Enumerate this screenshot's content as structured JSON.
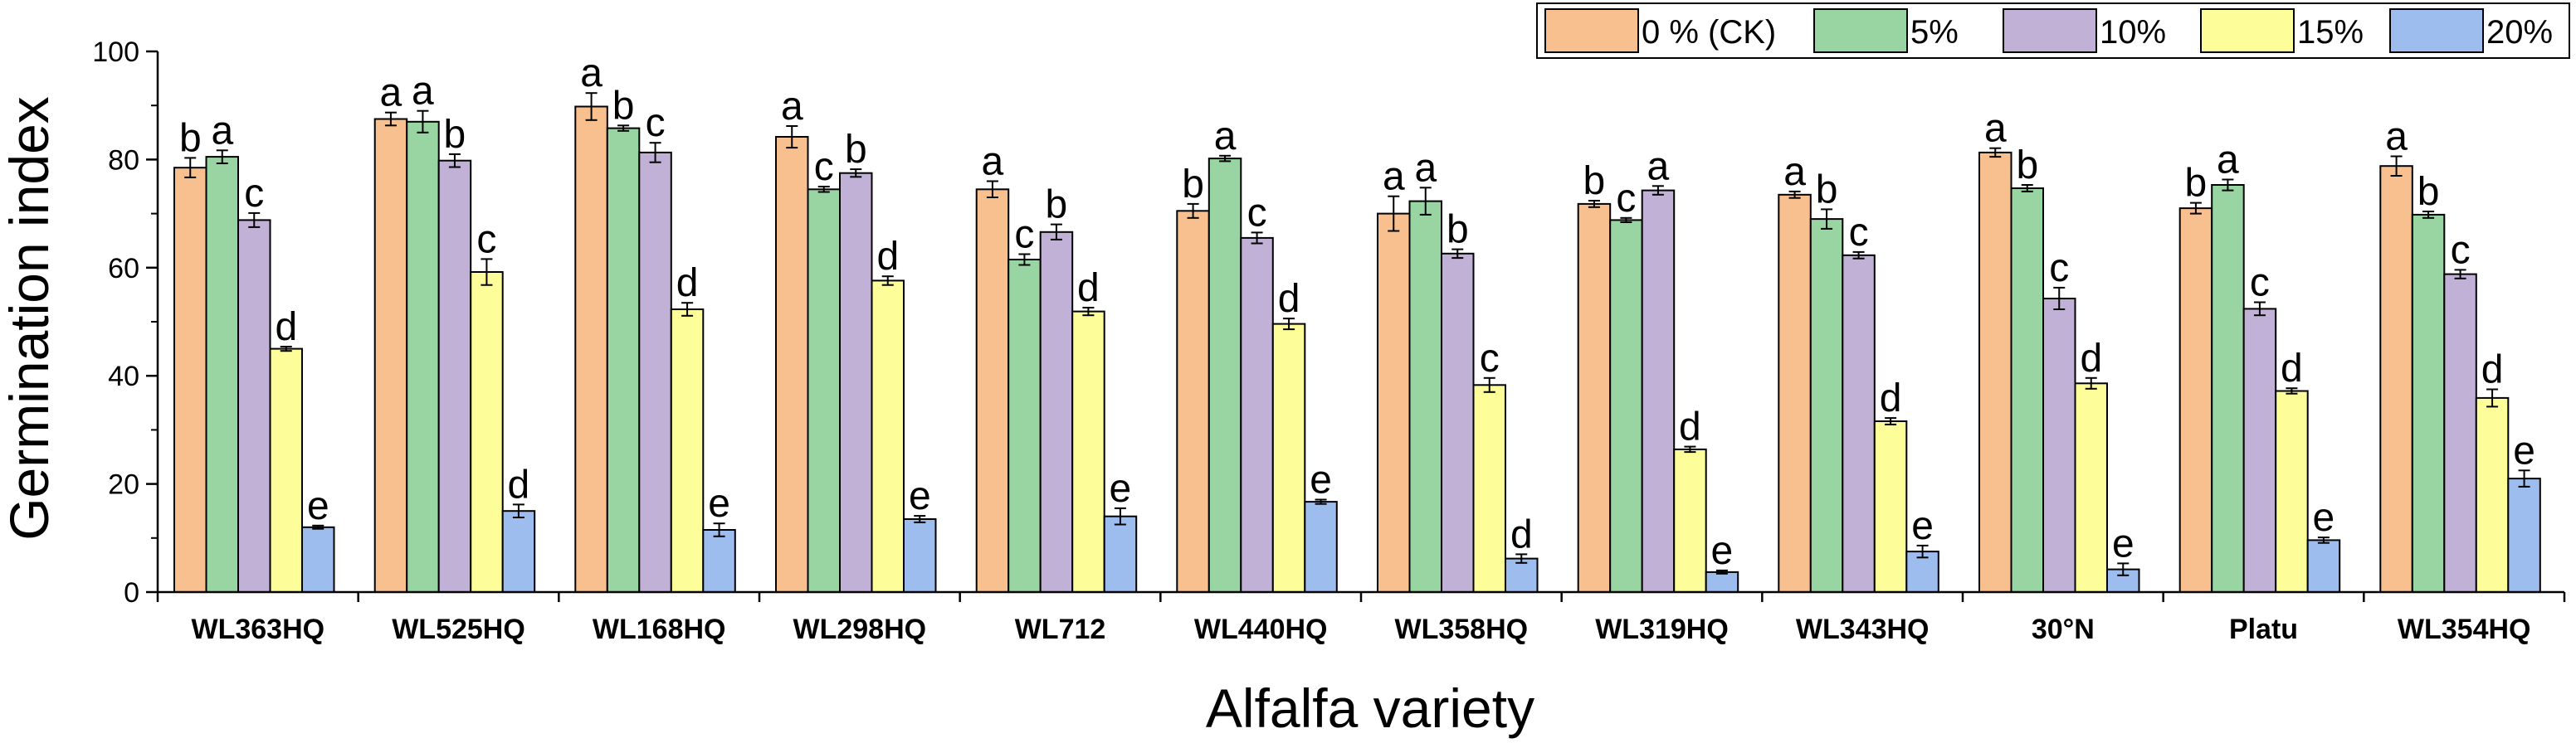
{
  "chart_data": {
    "type": "bar",
    "title": "",
    "xlabel": "Alfalfa variety",
    "ylabel": "Germination index",
    "ylim": [
      0,
      100
    ],
    "yticks": [
      "0",
      "20",
      "40",
      "60",
      "80",
      "100"
    ],
    "legend_position": "top-right",
    "categories": [
      "WL363HQ",
      "WL525HQ",
      "WL168HQ",
      "WL298HQ",
      "WL712",
      "WL440HQ",
      "WL358HQ",
      "WL319HQ",
      "WL343HQ",
      "30°N",
      "Platu",
      "WL354HQ"
    ],
    "series": [
      {
        "name": "0 % (CK)",
        "color": "#f8c08e",
        "values": [
          78.5,
          87.5,
          89.8,
          84.2,
          74.5,
          70.5,
          70.0,
          71.8,
          73.5,
          81.3,
          71.0,
          78.8
        ],
        "errors": [
          1.8,
          1.2,
          2.5,
          2.0,
          1.5,
          1.3,
          3.2,
          0.6,
          0.6,
          0.8,
          1.0,
          1.8
        ],
        "letters": [
          "b",
          "a",
          "a",
          "a",
          "a",
          "b",
          "a",
          "b",
          "a",
          "a",
          "b",
          "a"
        ]
      },
      {
        "name": "5%",
        "color": "#99d5a2",
        "values": [
          80.5,
          87.0,
          85.8,
          74.5,
          61.5,
          80.2,
          72.3,
          68.8,
          69.0,
          74.7,
          75.3,
          69.8
        ],
        "errors": [
          1.2,
          2.0,
          0.5,
          0.5,
          1.0,
          0.5,
          2.5,
          0.4,
          1.8,
          0.6,
          1.0,
          0.6
        ],
        "letters": [
          "a",
          "a",
          "b",
          "c",
          "c",
          "a",
          "a",
          "c",
          "b",
          "b",
          "a",
          "b"
        ]
      },
      {
        "name": "10%",
        "color": "#c1b1d7",
        "values": [
          68.8,
          79.8,
          81.3,
          77.5,
          66.6,
          65.5,
          62.6,
          74.3,
          62.3,
          54.3,
          52.4,
          58.8
        ],
        "errors": [
          1.3,
          1.2,
          1.8,
          0.7,
          1.4,
          1.0,
          0.8,
          0.8,
          0.6,
          2.0,
          1.2,
          0.8
        ],
        "letters": [
          "c",
          "b",
          "c",
          "b",
          "b",
          "c",
          "b",
          "a",
          "c",
          "c",
          "c",
          "c"
        ]
      },
      {
        "name": "15%",
        "color": "#fdfd99",
        "values": [
          45.0,
          59.2,
          52.3,
          57.6,
          51.9,
          49.6,
          38.3,
          26.4,
          31.6,
          38.6,
          37.2,
          35.9
        ],
        "errors": [
          0.4,
          2.4,
          1.2,
          0.8,
          0.7,
          1.0,
          1.3,
          0.5,
          0.6,
          1.0,
          0.5,
          1.6
        ],
        "letters": [
          "d",
          "c",
          "d",
          "d",
          "d",
          "d",
          "c",
          "d",
          "d",
          "d",
          "d",
          "d"
        ]
      },
      {
        "name": "20%",
        "color": "#9cbded",
        "values": [
          12.0,
          15.0,
          11.5,
          13.5,
          14.0,
          16.7,
          6.2,
          3.7,
          7.5,
          4.2,
          9.6,
          21.0
        ],
        "errors": [
          0.3,
          1.2,
          1.2,
          0.6,
          1.5,
          0.4,
          0.8,
          0.3,
          1.1,
          1.1,
          0.5,
          1.5
        ],
        "letters": [
          "e",
          "d",
          "e",
          "e",
          "e",
          "e",
          "d",
          "e",
          "e",
          "e",
          "e",
          "e"
        ]
      }
    ]
  }
}
